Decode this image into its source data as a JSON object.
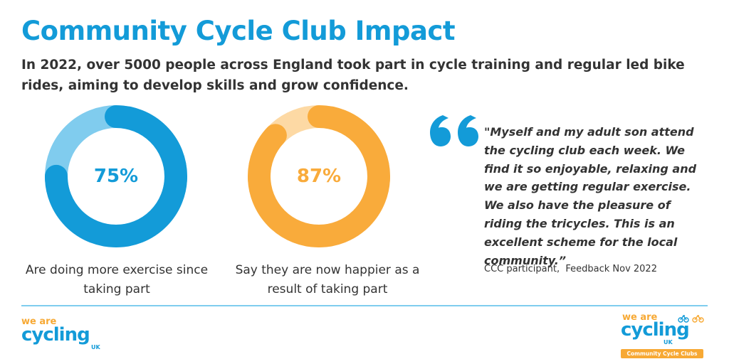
{
  "header": {
    "title": "Community Cycle Club Impact",
    "subtitle": "In 2022, over 5000 people across England took part in cycle training and regular led bike rides, aiming to develop skills and grow confidence."
  },
  "stats": [
    {
      "value_label": "75%",
      "value": 75,
      "caption": "Are doing more exercise since taking part",
      "color": "#139bd8",
      "track_color": "#80ccee"
    },
    {
      "value_label": "87%",
      "value": 87,
      "caption": "Say they are now happier as a result of taking part",
      "color": "#f9ab3b",
      "track_color": "#fdd9a4"
    }
  ],
  "testimonial": {
    "quote": "\"Myself and my adult son attend the cycling club each week. We find it so enjoyable, relaxing and we are getting regular exercise. We also have the pleasure of riding the tricycles. This is an excellent scheme for the local community.”",
    "attribution": "CCC participant,  Feedback Nov 2022",
    "quote_mark_color": "#139bd8"
  },
  "footer": {
    "logo_left": {
      "line1": "we are",
      "line2": "cycling",
      "line3": "UK"
    },
    "logo_right": {
      "line1": "we are",
      "line2": "cycling",
      "line3": "UK",
      "badge": "Community Cycle Clubs"
    },
    "divider_color": "#7fcdee"
  },
  "icons": [
    "quote-icon",
    "bicycle-icon"
  ]
}
